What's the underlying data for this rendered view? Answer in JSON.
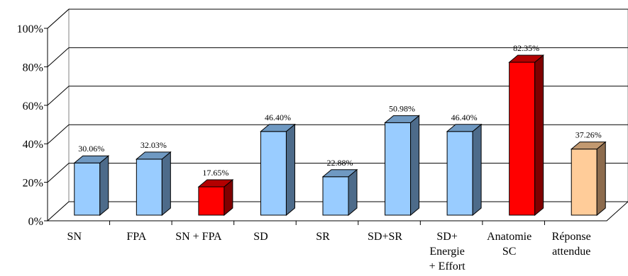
{
  "chart_data": {
    "type": "bar",
    "title": "",
    "xlabel": "",
    "ylabel": "",
    "ylim": [
      0,
      100
    ],
    "y_ticks": [
      0,
      20,
      40,
      60,
      80,
      100
    ],
    "y_tick_labels": [
      "0%",
      "20%",
      "40%",
      "60%",
      "80%",
      "100%"
    ],
    "grid": true,
    "bar_style": "3d",
    "categories": [
      [
        "SN"
      ],
      [
        "FPA"
      ],
      [
        "SN + FPA"
      ],
      [
        "SD"
      ],
      [
        "SR"
      ],
      [
        "SD+SR"
      ],
      [
        "SD+",
        "Energie",
        "+ Effort"
      ],
      [
        "Anatomie",
        "SC"
      ],
      [
        "Réponse",
        "attendue"
      ]
    ],
    "values": [
      30.06,
      32.03,
      17.65,
      46.4,
      22.88,
      50.98,
      46.4,
      82.35,
      37.26
    ],
    "value_labels": [
      "30.06%",
      "32.03%",
      "17.65%",
      "46.40%",
      "22.88%",
      "50.98%",
      "46.40%",
      "82.35%",
      "37.26%"
    ],
    "bar_colors": [
      "#99ccff",
      "#99ccff",
      "#ff0000",
      "#99ccff",
      "#99ccff",
      "#99ccff",
      "#99ccff",
      "#ff0000",
      "#ffcc99"
    ],
    "bar_side_colors": [
      "#4d6b8a",
      "#4d6b8a",
      "#800000",
      "#4d6b8a",
      "#4d6b8a",
      "#4d6b8a",
      "#4d6b8a",
      "#800000",
      "#8c6b4d"
    ],
    "bar_top_colors": [
      "#6f99c2",
      "#6f99c2",
      "#b30000",
      "#6f99c2",
      "#6f99c2",
      "#6f99c2",
      "#6f99c2",
      "#b30000",
      "#c29970"
    ]
  }
}
